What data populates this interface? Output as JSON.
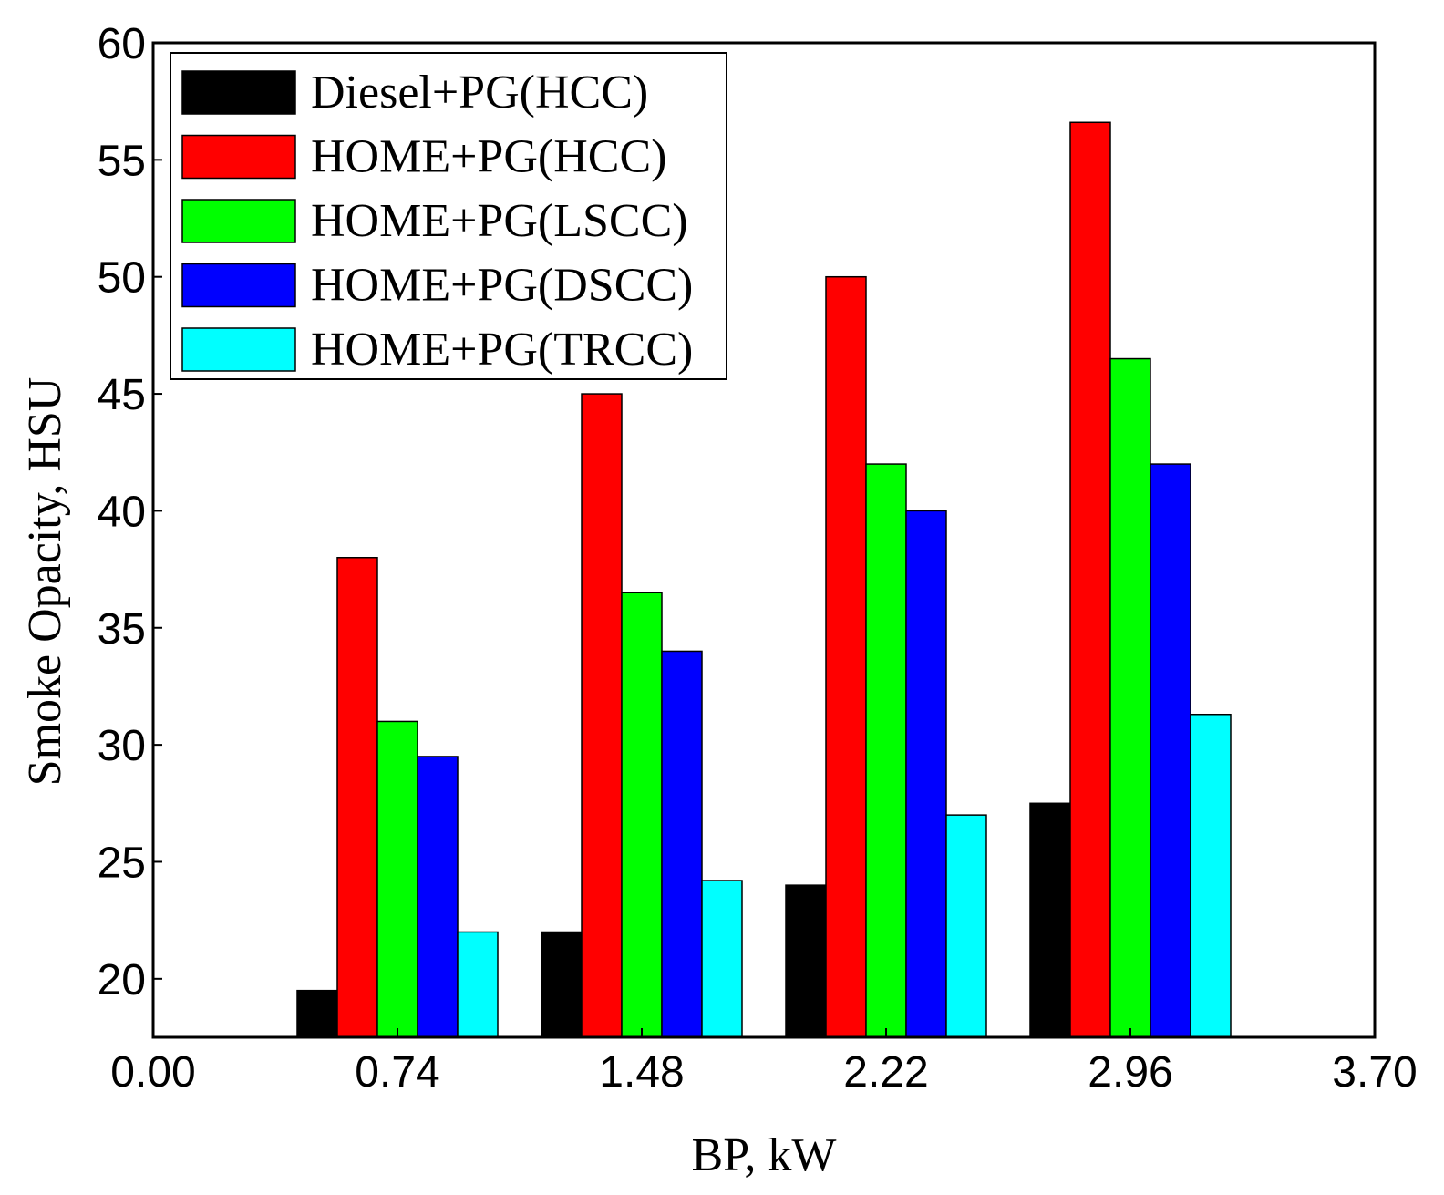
{
  "chart_data": {
    "type": "bar",
    "title": "",
    "xlabel": "BP, kW",
    "ylabel": "Smoke Opacity, HSU",
    "x_ticks": [
      "0.00",
      "0.74",
      "1.48",
      "2.22",
      "2.96",
      "3.70"
    ],
    "y_ticks": [
      "20",
      "25",
      "30",
      "35",
      "40",
      "45",
      "50",
      "55",
      "60"
    ],
    "categories": [
      "0.74",
      "1.48",
      "2.22",
      "2.96"
    ],
    "category_x": [
      0.74,
      1.48,
      2.22,
      2.96
    ],
    "xlim": [
      0.0,
      3.7
    ],
    "ylim": [
      17.5,
      60
    ],
    "grid": false,
    "legend_position": "top-left",
    "series": [
      {
        "name": "Diesel+PG(HCC)",
        "color": "#000000",
        "values": [
          19.5,
          22,
          24,
          27.5
        ]
      },
      {
        "name": "HOME+PG(HCC)",
        "color": "#ff0000",
        "values": [
          38,
          45,
          50,
          56.6
        ]
      },
      {
        "name": "HOME+PG(LSCC)",
        "color": "#00ff00",
        "values": [
          31,
          36.5,
          42,
          46.5
        ]
      },
      {
        "name": "HOME+PG(DSCC)",
        "color": "#0000ff",
        "values": [
          29.5,
          34,
          40,
          42
        ]
      },
      {
        "name": "HOME+PG(TRCC)",
        "color": "#00ffff",
        "values": [
          22,
          24.2,
          27,
          31.3
        ]
      }
    ]
  }
}
